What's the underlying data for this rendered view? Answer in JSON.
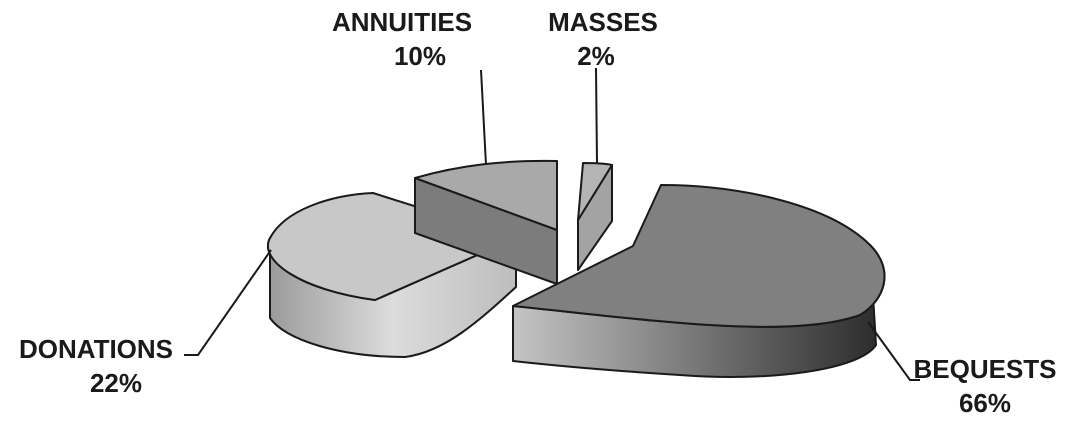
{
  "chart_data": {
    "type": "pie",
    "style": "3d-exploded",
    "title": "",
    "legend": "none",
    "slices": [
      {
        "label": "BEQUESTS",
        "value": 66,
        "value_label": "66%",
        "color": "#808080"
      },
      {
        "label": "DONATIONS",
        "value": 22,
        "value_label": "22%",
        "color": "#c8c8c8"
      },
      {
        "label": "ANNUITIES",
        "value": 10,
        "value_label": "10%",
        "color": "#a9a9a9"
      },
      {
        "label": "MASSES",
        "value": 2,
        "value_label": "2%",
        "color": "#b4b4b4"
      }
    ]
  }
}
